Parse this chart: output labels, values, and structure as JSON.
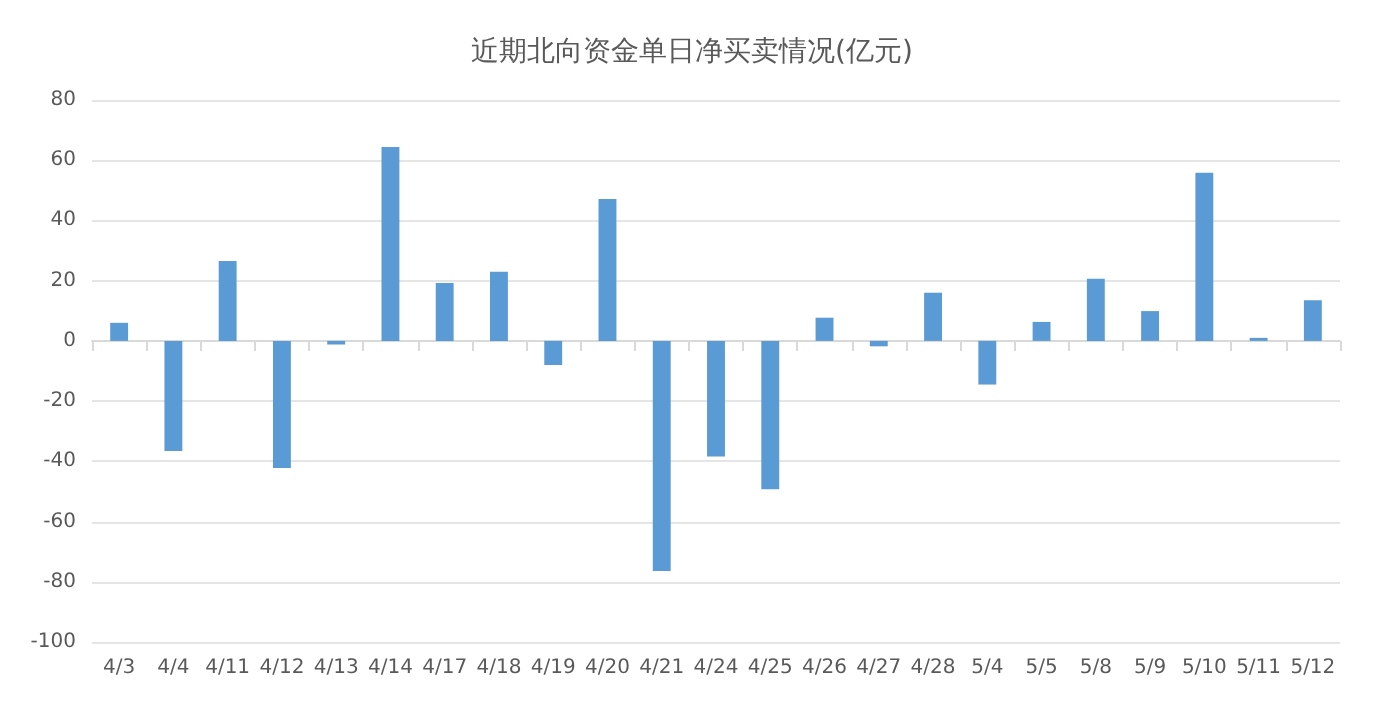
{
  "chart_data": {
    "type": "bar",
    "title": "近期北向资金单日净买卖情况(亿元)",
    "categories": [
      "4/3",
      "4/4",
      "4/11",
      "4/12",
      "4/13",
      "4/14",
      "4/17",
      "4/18",
      "4/19",
      "4/20",
      "4/21",
      "4/24",
      "4/25",
      "4/26",
      "4/27",
      "4/28",
      "5/4",
      "5/5",
      "5/8",
      "5/9",
      "5/10",
      "5/11",
      "5/12"
    ],
    "values": [
      6,
      -36.6,
      26.5,
      -42.2,
      -1.2,
      64.4,
      19.2,
      23,
      -8,
      47.1,
      -76.4,
      -38.4,
      -49.3,
      7.7,
      -1.8,
      16,
      -14.5,
      6.3,
      20.6,
      9.9,
      55.8,
      1,
      13.5
    ],
    "color": "#5b9bd5",
    "ylim": [
      -100,
      80
    ],
    "yticks": [
      -100,
      -80,
      -60,
      -40,
      -20,
      0,
      20,
      40,
      60,
      80
    ],
    "grid": "y"
  }
}
